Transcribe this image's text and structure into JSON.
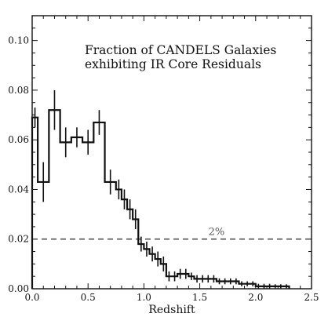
{
  "chart_data": {
    "type": "line",
    "style": "step histogram with vertical error bars",
    "title": "",
    "annotation": [
      "Fraction of CANDELS Galaxies",
      "exhibiting IR Core Residuals"
    ],
    "xlabel": "Redshift",
    "ylabel": "",
    "xlim": [
      0.0,
      2.5
    ],
    "ylim": [
      0.0,
      0.11
    ],
    "x_ticks": [
      "0.0",
      "0.5",
      "1.0",
      "1.5",
      "2.0",
      "2.5"
    ],
    "y_ticks": [
      "0.00",
      "0.02",
      "0.04",
      "0.06",
      "0.08",
      "0.10"
    ],
    "grid": false,
    "legend": "none",
    "series": [
      {
        "bin_edges": [
          0.0,
          0.05,
          0.15,
          0.25,
          0.35,
          0.45,
          0.55,
          0.65,
          0.75,
          0.8,
          0.85,
          0.9,
          0.95,
          1.0,
          1.05,
          1.1,
          1.15,
          1.2,
          1.25,
          1.3,
          1.35,
          1.4,
          1.45,
          1.5,
          1.55,
          1.6,
          1.65,
          1.7,
          1.75,
          1.8,
          1.85,
          1.9,
          1.95,
          2.0,
          2.05,
          2.1,
          2.15,
          2.2,
          2.25,
          2.3
        ],
        "values": [
          0.069,
          0.043,
          0.072,
          0.059,
          0.061,
          0.059,
          0.067,
          0.043,
          0.04,
          0.036,
          0.032,
          0.028,
          0.018,
          0.016,
          0.014,
          0.012,
          0.01,
          0.005,
          0.005,
          0.006,
          0.006,
          0.005,
          0.004,
          0.004,
          0.004,
          0.004,
          0.003,
          0.003,
          0.003,
          0.003,
          0.002,
          0.002,
          0.002,
          0.001,
          0.001,
          0.001,
          0.001,
          0.001,
          0.001
        ],
        "errors": [
          0.004,
          0.008,
          0.008,
          0.006,
          0.004,
          0.005,
          0.005,
          0.005,
          0.004,
          0.004,
          0.004,
          0.004,
          0.003,
          0.003,
          0.003,
          0.003,
          0.003,
          0.002,
          0.002,
          0.002,
          0.002,
          0.0015,
          0.0015,
          0.0015,
          0.0015,
          0.0015,
          0.0012,
          0.0012,
          0.0012,
          0.0012,
          0.001,
          0.001,
          0.001,
          0.001,
          0.001,
          0.001,
          0.0008,
          0.0008,
          0.0008
        ],
        "color": "#111111"
      }
    ],
    "reference_line": {
      "y": 0.02,
      "label": "2%",
      "style": "dashed",
      "color": "#555555"
    }
  }
}
